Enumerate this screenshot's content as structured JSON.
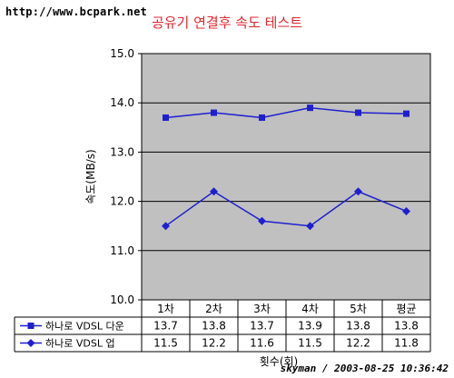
{
  "watermark_top": "http://www.bcpark.net",
  "watermark_bottom": "skyman / 2003-08-25 10:36:42",
  "chart_data": {
    "type": "line",
    "title": "공유기 연결후 속도 테스트",
    "xlabel": "횟수(회)",
    "ylabel": "속도(MB/s)",
    "ylim": [
      10.0,
      15.0
    ],
    "yticks": [
      "10.0",
      "11.0",
      "12.0",
      "13.0",
      "14.0",
      "15.0"
    ],
    "grid": true,
    "legend": "data-table-left",
    "plot_bg": "#c0c0c0",
    "categories": [
      "1차",
      "2차",
      "3차",
      "4차",
      "5차",
      "평균"
    ],
    "series": [
      {
        "name": "하나로 VDSL 다운",
        "marker": "square",
        "color": "#1f1fd0",
        "values": [
          13.7,
          13.8,
          13.7,
          13.9,
          13.8,
          13.78
        ],
        "labels": [
          "13.7",
          "13.8",
          "13.7",
          "13.9",
          "13.8",
          "13.8"
        ]
      },
      {
        "name": "하나로 VDSL 업",
        "marker": "diamond",
        "color": "#1f1fd0",
        "values": [
          11.5,
          12.2,
          11.6,
          11.5,
          12.2,
          11.8
        ],
        "labels": [
          "11.5",
          "12.2",
          "11.6",
          "11.5",
          "12.2",
          "11.8"
        ]
      }
    ]
  }
}
